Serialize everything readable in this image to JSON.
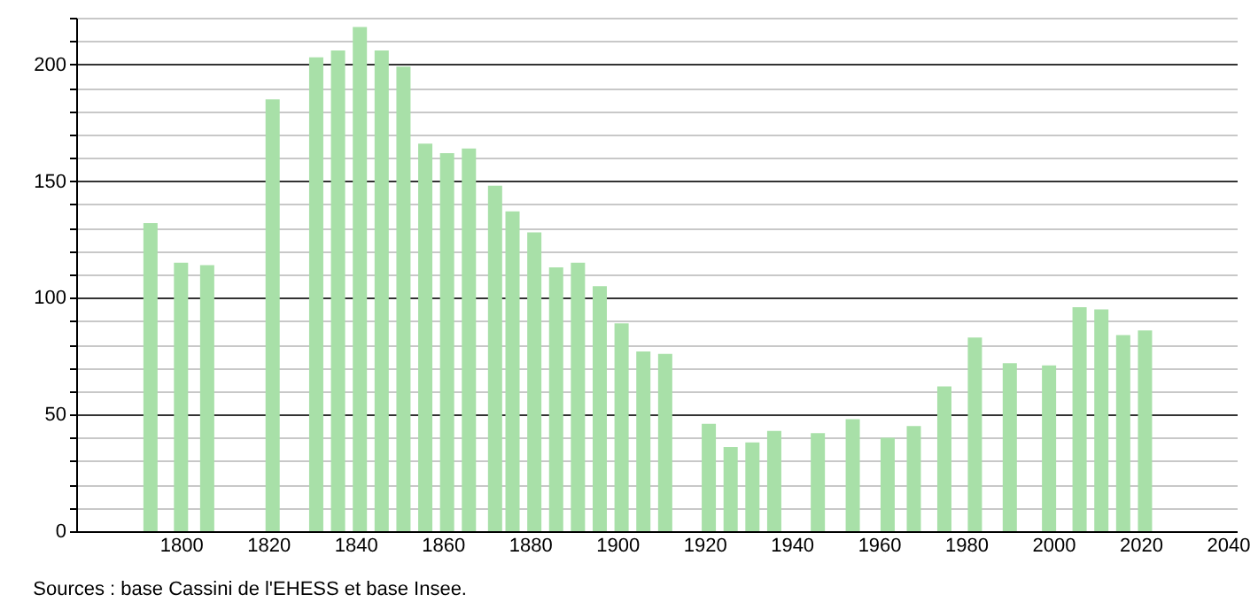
{
  "chart_data": {
    "type": "bar",
    "x": [
      1793,
      1800,
      1806,
      1821,
      1831,
      1836,
      1841,
      1846,
      1851,
      1856,
      1861,
      1866,
      1872,
      1876,
      1881,
      1886,
      1891,
      1896,
      1901,
      1906,
      1911,
      1921,
      1926,
      1931,
      1936,
      1946,
      1954,
      1962,
      1968,
      1975,
      1982,
      1990,
      1999,
      2006,
      2011,
      2016,
      2021
    ],
    "values": [
      132,
      115,
      114,
      185,
      203,
      206,
      216,
      206,
      199,
      166,
      162,
      164,
      148,
      137,
      128,
      113,
      115,
      105,
      89,
      77,
      76,
      46,
      36,
      38,
      43,
      42,
      48,
      40,
      45,
      62,
      83,
      72,
      71,
      96,
      95,
      84,
      86
    ],
    "color": "#a8e0a8",
    "xlim": [
      1778,
      2040
    ],
    "xticks": [
      1800,
      1820,
      1840,
      1860,
      1880,
      1900,
      1920,
      1940,
      1960,
      1980,
      2000,
      2020,
      2040
    ],
    "ylim": [
      0,
      220
    ],
    "yticks": [
      0,
      {
        "value": 10,
        "label": null
      },
      {
        "value": 20,
        "label": null
      },
      {
        "value": 30,
        "label": null
      },
      {
        "value": 40,
        "label": null
      },
      50,
      {
        "value": 60,
        "label": null
      },
      {
        "value": 70,
        "label": null
      },
      {
        "value": 80,
        "label": null
      },
      {
        "value": 90,
        "label": null
      },
      100,
      {
        "value": 110,
        "label": null
      },
      {
        "value": 120,
        "label": null
      },
      {
        "value": 130,
        "label": null
      },
      {
        "value": 140,
        "label": null
      },
      150,
      {
        "value": 160,
        "label": null
      },
      {
        "value": 170,
        "label": null
      },
      {
        "value": 180,
        "label": null
      },
      {
        "value": 190,
        "label": null
      },
      200,
      {
        "value": 210,
        "label": null
      },
      {
        "value": 220,
        "label": null
      }
    ],
    "grid": "y",
    "annotations": [
      "Sources : base Cassini de l'EHESS et base Insee."
    ]
  }
}
